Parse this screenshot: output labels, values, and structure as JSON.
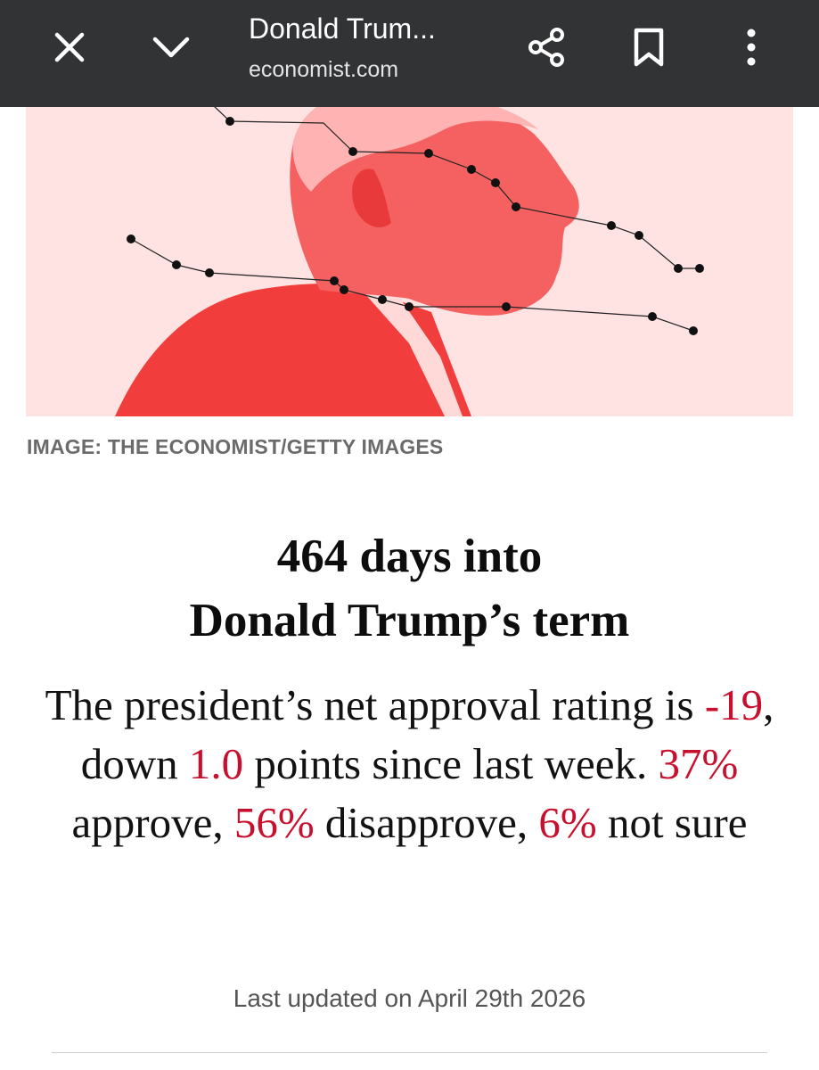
{
  "browser": {
    "title": "Donald Trum...",
    "url": "economist.com",
    "icons": {
      "close": "close-icon",
      "collapse": "chevron-down-icon",
      "share": "share-icon",
      "bookmark": "bookmark-icon",
      "menu": "more-vert-icon"
    }
  },
  "hero": {
    "caption": "IMAGE: THE ECONOMIST/GETTY IMAGES"
  },
  "article": {
    "headline_line1": "464 days into",
    "headline_line2": "Donald Trump’s term",
    "standfirst": {
      "p1": "The president’s net approval rating is ",
      "net": "-19",
      "p2": ", down ",
      "change": "1.0",
      "p3": " points since last week. ",
      "approve": "37%",
      "p4": " approve, ",
      "disapprove": "56%",
      "p5": " disapprove, ",
      "unsure": "6%",
      "p6": " not sure"
    },
    "updated": "Last updated on April 29th 2026"
  },
  "colors": {
    "topbar": "#313335",
    "highlight": "#c8102e",
    "hero_background": "#ffe2e2",
    "hero_figure": "#f24a4a"
  }
}
